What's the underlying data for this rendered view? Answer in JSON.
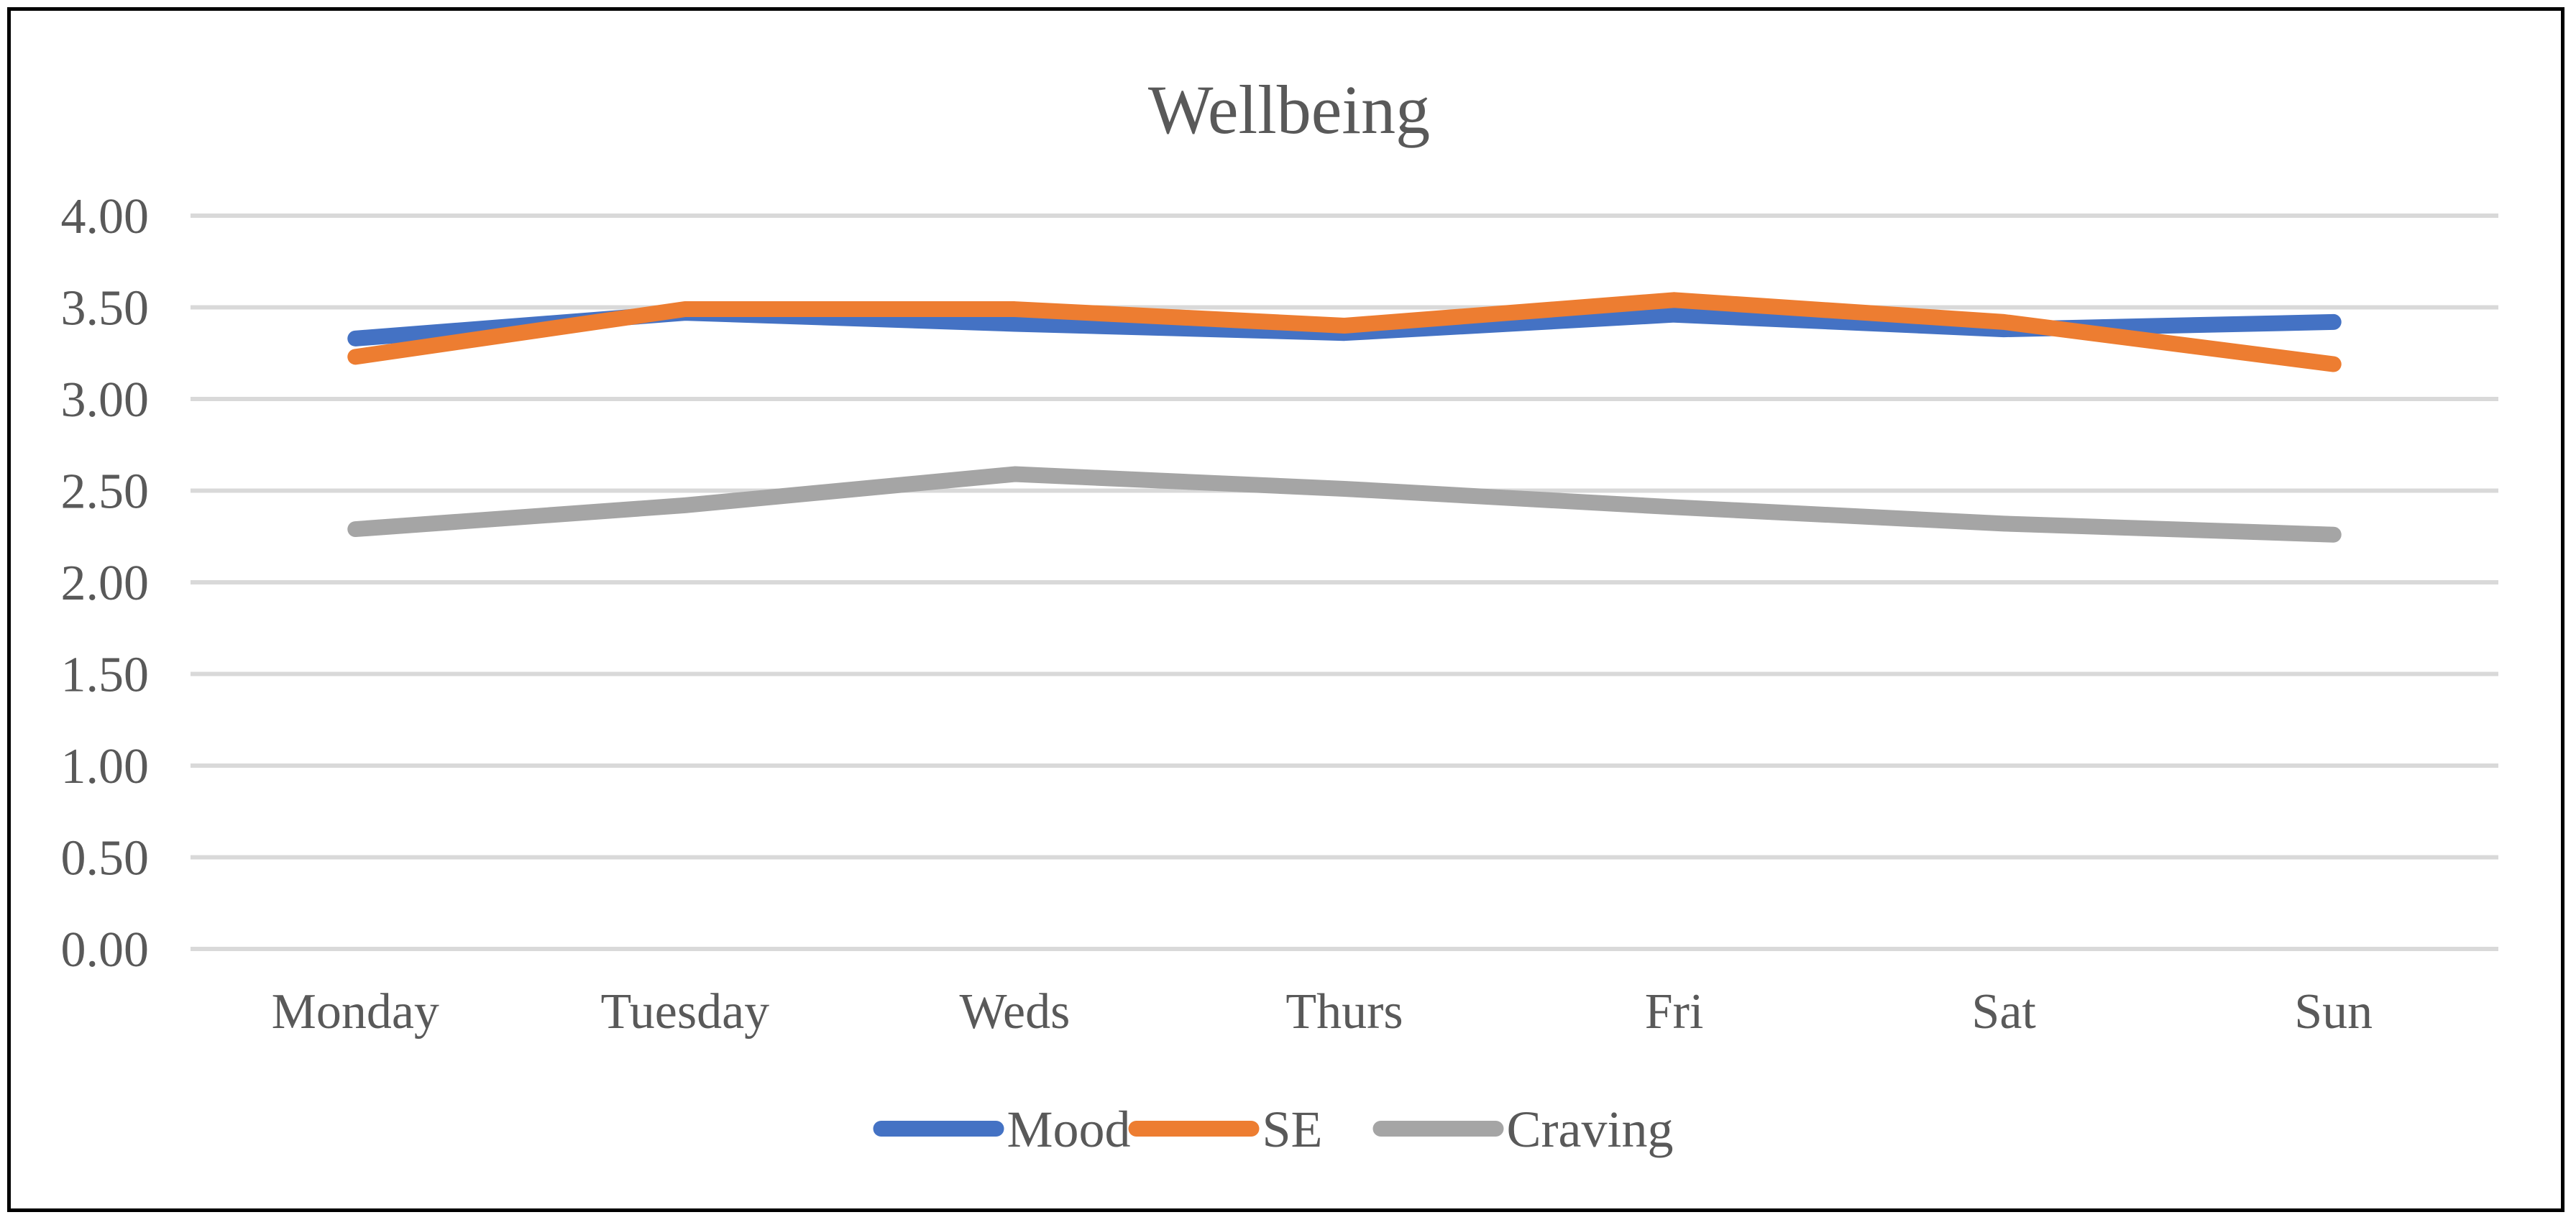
{
  "chart_data": {
    "type": "line",
    "title": "Wellbeing",
    "xlabel": "",
    "ylabel": "",
    "categories": [
      "Monday",
      "Tuesday",
      "Weds",
      "Thurs",
      "Fri",
      "Sat",
      "Sun"
    ],
    "ylim": [
      0,
      4
    ],
    "yticks": [
      "0.00",
      "0.50",
      "1.00",
      "1.50",
      "2.00",
      "2.50",
      "3.00",
      "3.50",
      "4.00"
    ],
    "grid": true,
    "legend_position": "bottom",
    "series": [
      {
        "name": "Mood",
        "color": "#4472C4",
        "values": [
          3.33,
          3.47,
          3.41,
          3.36,
          3.46,
          3.38,
          3.42
        ]
      },
      {
        "name": "SE",
        "color": "#ED7D31",
        "values": [
          3.23,
          3.49,
          3.49,
          3.4,
          3.54,
          3.42,
          3.19
        ]
      },
      {
        "name": "Craving",
        "color": "#A5A5A5",
        "values": [
          2.29,
          2.42,
          2.59,
          2.51,
          2.41,
          2.32,
          2.26
        ]
      }
    ]
  }
}
